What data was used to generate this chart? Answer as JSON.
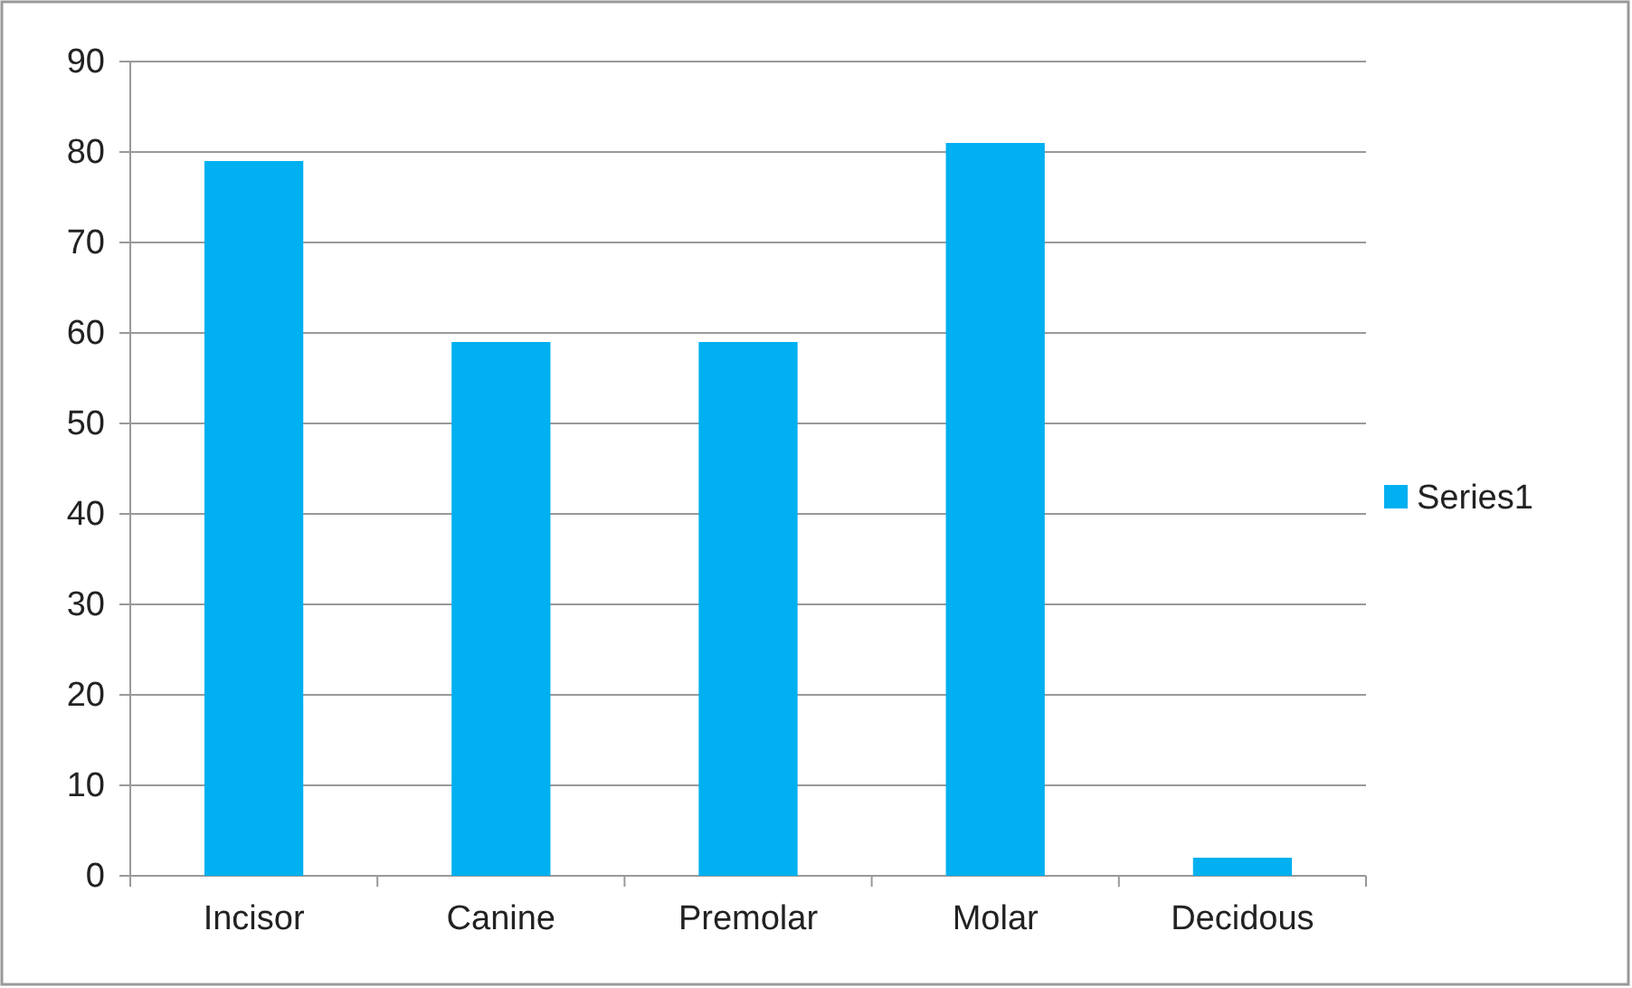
{
  "chart_data": {
    "type": "bar",
    "categories": [
      "Incisor",
      "Canine",
      "Premolar",
      "Molar",
      "Decidous"
    ],
    "series": [
      {
        "name": "Series1",
        "color": "#00b0f0",
        "values": [
          79,
          59,
          59,
          81,
          2
        ]
      }
    ],
    "ylim": [
      0,
      90
    ],
    "yticks": [
      0,
      10,
      20,
      30,
      40,
      50,
      60,
      70,
      80,
      90
    ],
    "grid": "y",
    "legend": "right"
  }
}
